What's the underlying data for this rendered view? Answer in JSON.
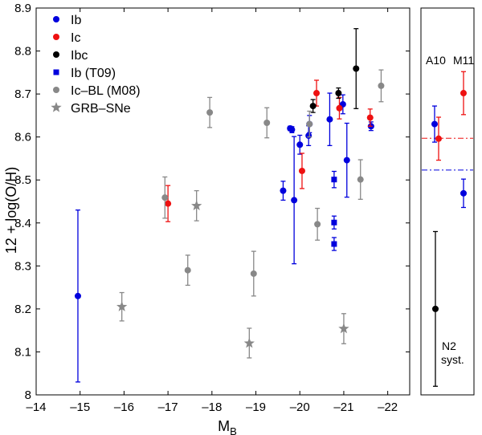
{
  "chart_data": [
    {
      "type": "scatter",
      "xlabel": "M",
      "xlabel_sub": "B",
      "ylabel": "12 + log(O/H)",
      "xlim": [
        -14,
        -22.5
      ],
      "x_reversed": true,
      "ylim": [
        8.0,
        8.9
      ],
      "grid": false,
      "legend_position": "top-left",
      "xticks": [
        -14,
        -15,
        -16,
        -17,
        -18,
        -19,
        -20,
        -21,
        -22
      ],
      "xtick_labels": [
        "–14",
        "–15",
        "–16",
        "–17",
        "–18",
        "–19",
        "–20",
        "–21",
        "–22"
      ],
      "yticks": [
        8.0,
        8.1,
        8.2,
        8.3,
        8.4,
        8.5,
        8.6,
        8.7,
        8.8,
        8.9
      ],
      "ytick_labels": [
        "8",
        "8.1",
        "8.2",
        "8.3",
        "8.4",
        "8.5",
        "8.6",
        "8.7",
        "8.8",
        "8.9"
      ],
      "series": [
        {
          "name": "Ib",
          "color": "#0000dd",
          "marker": "circle",
          "points": [
            {
              "x": -14.95,
              "y": 8.23,
              "lo": 8.03,
              "hi": 8.43
            },
            {
              "x": -19.62,
              "y": 8.475,
              "lo": 8.453,
              "hi": 8.497
            },
            {
              "x": -19.78,
              "y": 8.62,
              "lo": 8.615,
              "hi": 8.625
            },
            {
              "x": -19.82,
              "y": 8.617,
              "lo": 8.61,
              "hi": 8.624
            },
            {
              "x": -19.87,
              "y": 8.453,
              "lo": 8.305,
              "hi": 8.601
            },
            {
              "x": -20.0,
              "y": 8.582,
              "lo": 8.56,
              "hi": 8.604
            },
            {
              "x": -20.2,
              "y": 8.603,
              "lo": 8.58,
              "hi": 8.626
            },
            {
              "x": -20.22,
              "y": 8.63,
              "lo": 8.61,
              "hi": 8.65
            },
            {
              "x": -20.68,
              "y": 8.641,
              "lo": 8.58,
              "hi": 8.702
            },
            {
              "x": -20.98,
              "y": 8.676,
              "lo": 8.654,
              "hi": 8.698
            },
            {
              "x": -21.07,
              "y": 8.546,
              "lo": 8.46,
              "hi": 8.632
            },
            {
              "x": -21.62,
              "y": 8.625,
              "lo": 8.615,
              "hi": 8.635
            }
          ]
        },
        {
          "name": "Ic",
          "color": "#ee1111",
          "marker": "circle",
          "points": [
            {
              "x": -17.0,
              "y": 8.445,
              "lo": 8.403,
              "hi": 8.487
            },
            {
              "x": -20.05,
              "y": 8.521,
              "lo": 8.48,
              "hi": 8.562
            },
            {
              "x": -20.38,
              "y": 8.702,
              "lo": 8.672,
              "hi": 8.732
            },
            {
              "x": -20.9,
              "y": 8.667,
              "lo": 8.642,
              "hi": 8.692
            },
            {
              "x": -21.6,
              "y": 8.645,
              "lo": 8.625,
              "hi": 8.665
            }
          ]
        },
        {
          "name": "Ibc",
          "color": "#000000",
          "marker": "circle",
          "points": [
            {
              "x": -20.3,
              "y": 8.672,
              "lo": 8.657,
              "hi": 8.687
            },
            {
              "x": -20.88,
              "y": 8.702,
              "lo": 8.69,
              "hi": 8.714
            },
            {
              "x": -21.28,
              "y": 8.759,
              "lo": 8.666,
              "hi": 8.852
            }
          ]
        },
        {
          "name": "Ib (T09)",
          "color": "#0000dd",
          "marker": "square",
          "points": [
            {
              "x": -20.78,
              "y": 8.501,
              "lo": 8.482,
              "hi": 8.52
            },
            {
              "x": -20.78,
              "y": 8.401,
              "lo": 8.386,
              "hi": 8.416
            },
            {
              "x": -20.78,
              "y": 8.351,
              "lo": 8.336,
              "hi": 8.366
            }
          ]
        },
        {
          "name": "Ic–BL (M08)",
          "color": "#888888",
          "marker": "circle",
          "points": [
            {
              "x": -16.93,
              "y": 8.459,
              "lo": 8.411,
              "hi": 8.507
            },
            {
              "x": -17.45,
              "y": 8.29,
              "lo": 8.255,
              "hi": 8.325
            },
            {
              "x": -17.95,
              "y": 8.657,
              "lo": 8.622,
              "hi": 8.692
            },
            {
              "x": -18.95,
              "y": 8.282,
              "lo": 8.23,
              "hi": 8.334
            },
            {
              "x": -19.25,
              "y": 8.633,
              "lo": 8.598,
              "hi": 8.668
            },
            {
              "x": -20.22,
              "y": 8.63,
              "lo": 8.6,
              "hi": 8.66
            },
            {
              "x": -20.4,
              "y": 8.397,
              "lo": 8.36,
              "hi": 8.434
            },
            {
              "x": -21.38,
              "y": 8.501,
              "lo": 8.455,
              "hi": 8.547
            },
            {
              "x": -21.85,
              "y": 8.719,
              "lo": 8.682,
              "hi": 8.756
            }
          ]
        },
        {
          "name": "GRB–SNe",
          "color": "#888888",
          "marker": "star",
          "points": [
            {
              "x": -15.95,
              "y": 8.205,
              "lo": 8.172,
              "hi": 8.238
            },
            {
              "x": -17.65,
              "y": 8.44,
              "lo": 8.405,
              "hi": 8.475
            },
            {
              "x": -18.85,
              "y": 8.12,
              "lo": 8.086,
              "hi": 8.155
            },
            {
              "x": -21.0,
              "y": 8.154,
              "lo": 8.119,
              "hi": 8.189
            }
          ]
        }
      ]
    },
    {
      "type": "scatter",
      "ylim": [
        8.0,
        8.9
      ],
      "labels": {
        "a10": "A10",
        "m11": "M11",
        "n2_line1": "N2",
        "n2_line2": "syst."
      },
      "points": [
        {
          "label_ref": "a10",
          "color": "#0000dd",
          "y": 8.63,
          "lo": 8.588,
          "hi": 8.672
        },
        {
          "label_ref": "a10",
          "color": "#ee1111",
          "y": 8.596,
          "lo": 8.546,
          "hi": 8.646
        },
        {
          "label_ref": "m11",
          "color": "#ee1111",
          "y": 8.702,
          "lo": 8.652,
          "hi": 8.752
        },
        {
          "label_ref": "m11",
          "color": "#0000dd",
          "y": 8.469,
          "lo": 8.436,
          "hi": 8.502
        },
        {
          "label_ref": "n2",
          "color": "#000000",
          "y": 8.2,
          "lo": 8.02,
          "hi": 8.38
        }
      ],
      "reference_lines": [
        {
          "color": "#ee1111",
          "style": "dash-dot",
          "y": 8.597
        },
        {
          "color": "#0000dd",
          "style": "dash-dot",
          "y": 8.523
        }
      ]
    }
  ]
}
